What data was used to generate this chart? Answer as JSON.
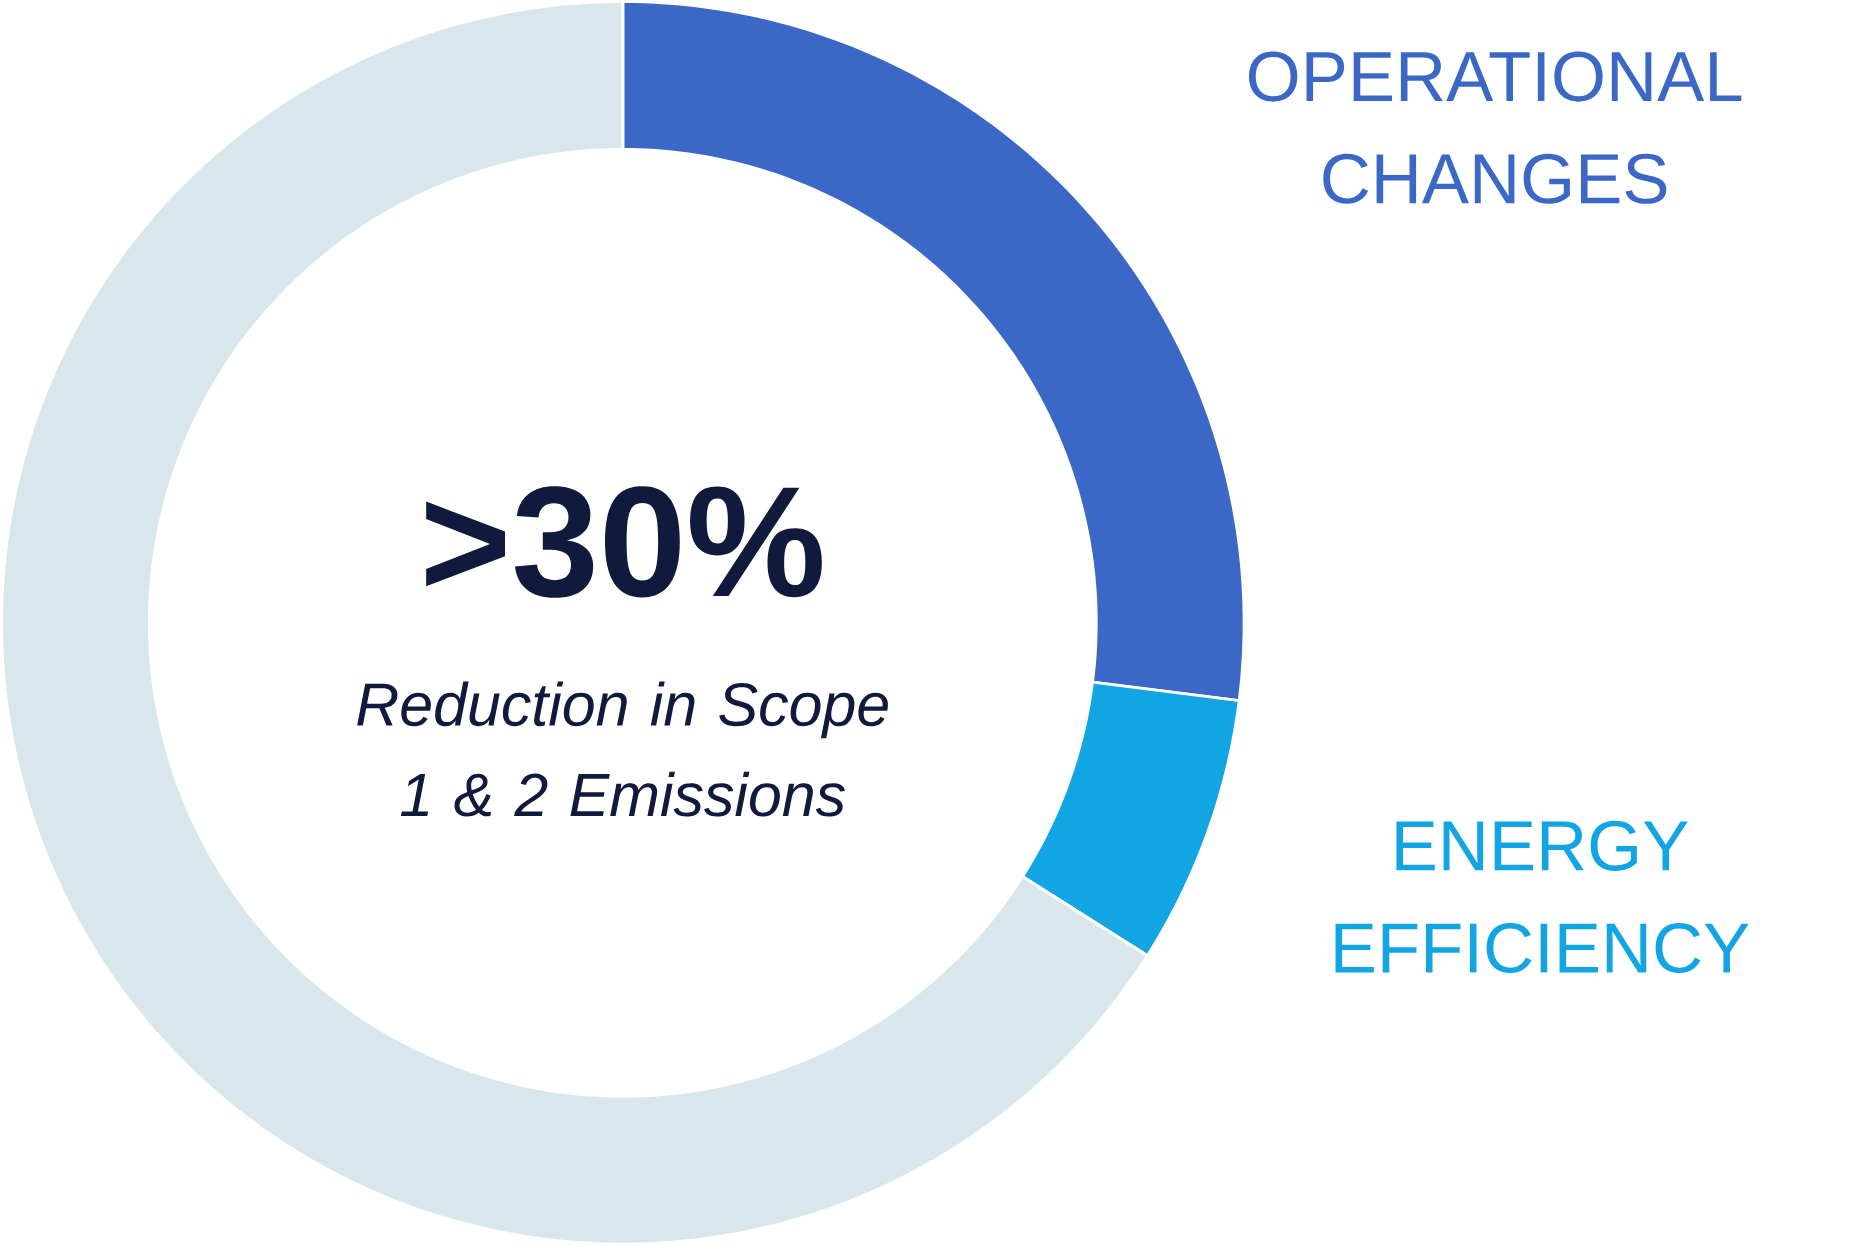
{
  "chart_data": {
    "type": "donut",
    "title": ">30%",
    "subtitle": "Reduction in Scope 1 & 2 Emissions",
    "categories": [
      "OPERATIONAL CHANGES",
      "ENERGY EFFICIENCY",
      null
    ],
    "values": [
      27,
      7,
      66
    ],
    "colors": [
      "#3b68c6",
      "#12a5e3",
      "#d9e7ec"
    ]
  }
}
